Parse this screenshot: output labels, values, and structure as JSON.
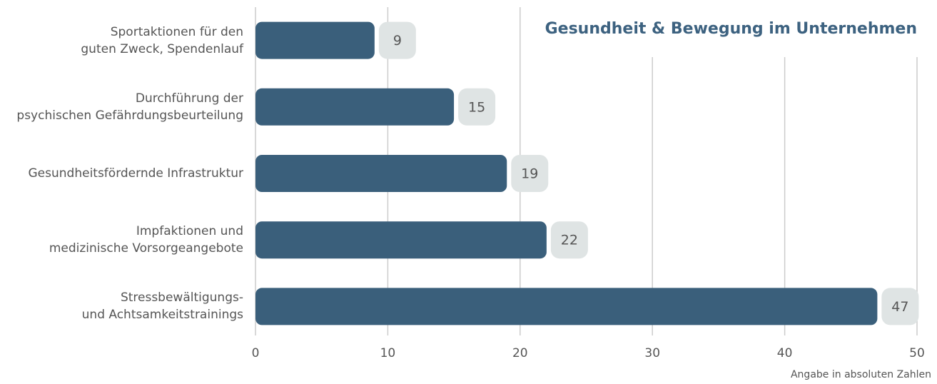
{
  "chart_data": {
    "type": "bar",
    "orientation": "horizontal",
    "title": "Gesundheit & Bewegung im Unternehmen",
    "note": "Angabe in absoluten Zahlen",
    "categories": [
      "Sportaktionen für den\nguten Zweck, Spendenlauf",
      "Durchführung der\npsychischen Gefährdungsbeurteilung",
      "Gesundheitsfördernde Infrastruktur",
      "Impfaktionen und\nmedizinische Vorsorgeangebote",
      "Stressbewältigungs-\nund Achtsamkeitstrainings"
    ],
    "values": [
      9,
      15,
      19,
      22,
      47
    ],
    "color": "#3a5f7b",
    "xlim": [
      0,
      50
    ],
    "xticks": [
      0,
      10,
      20,
      30,
      40,
      50
    ],
    "grid": true
  }
}
